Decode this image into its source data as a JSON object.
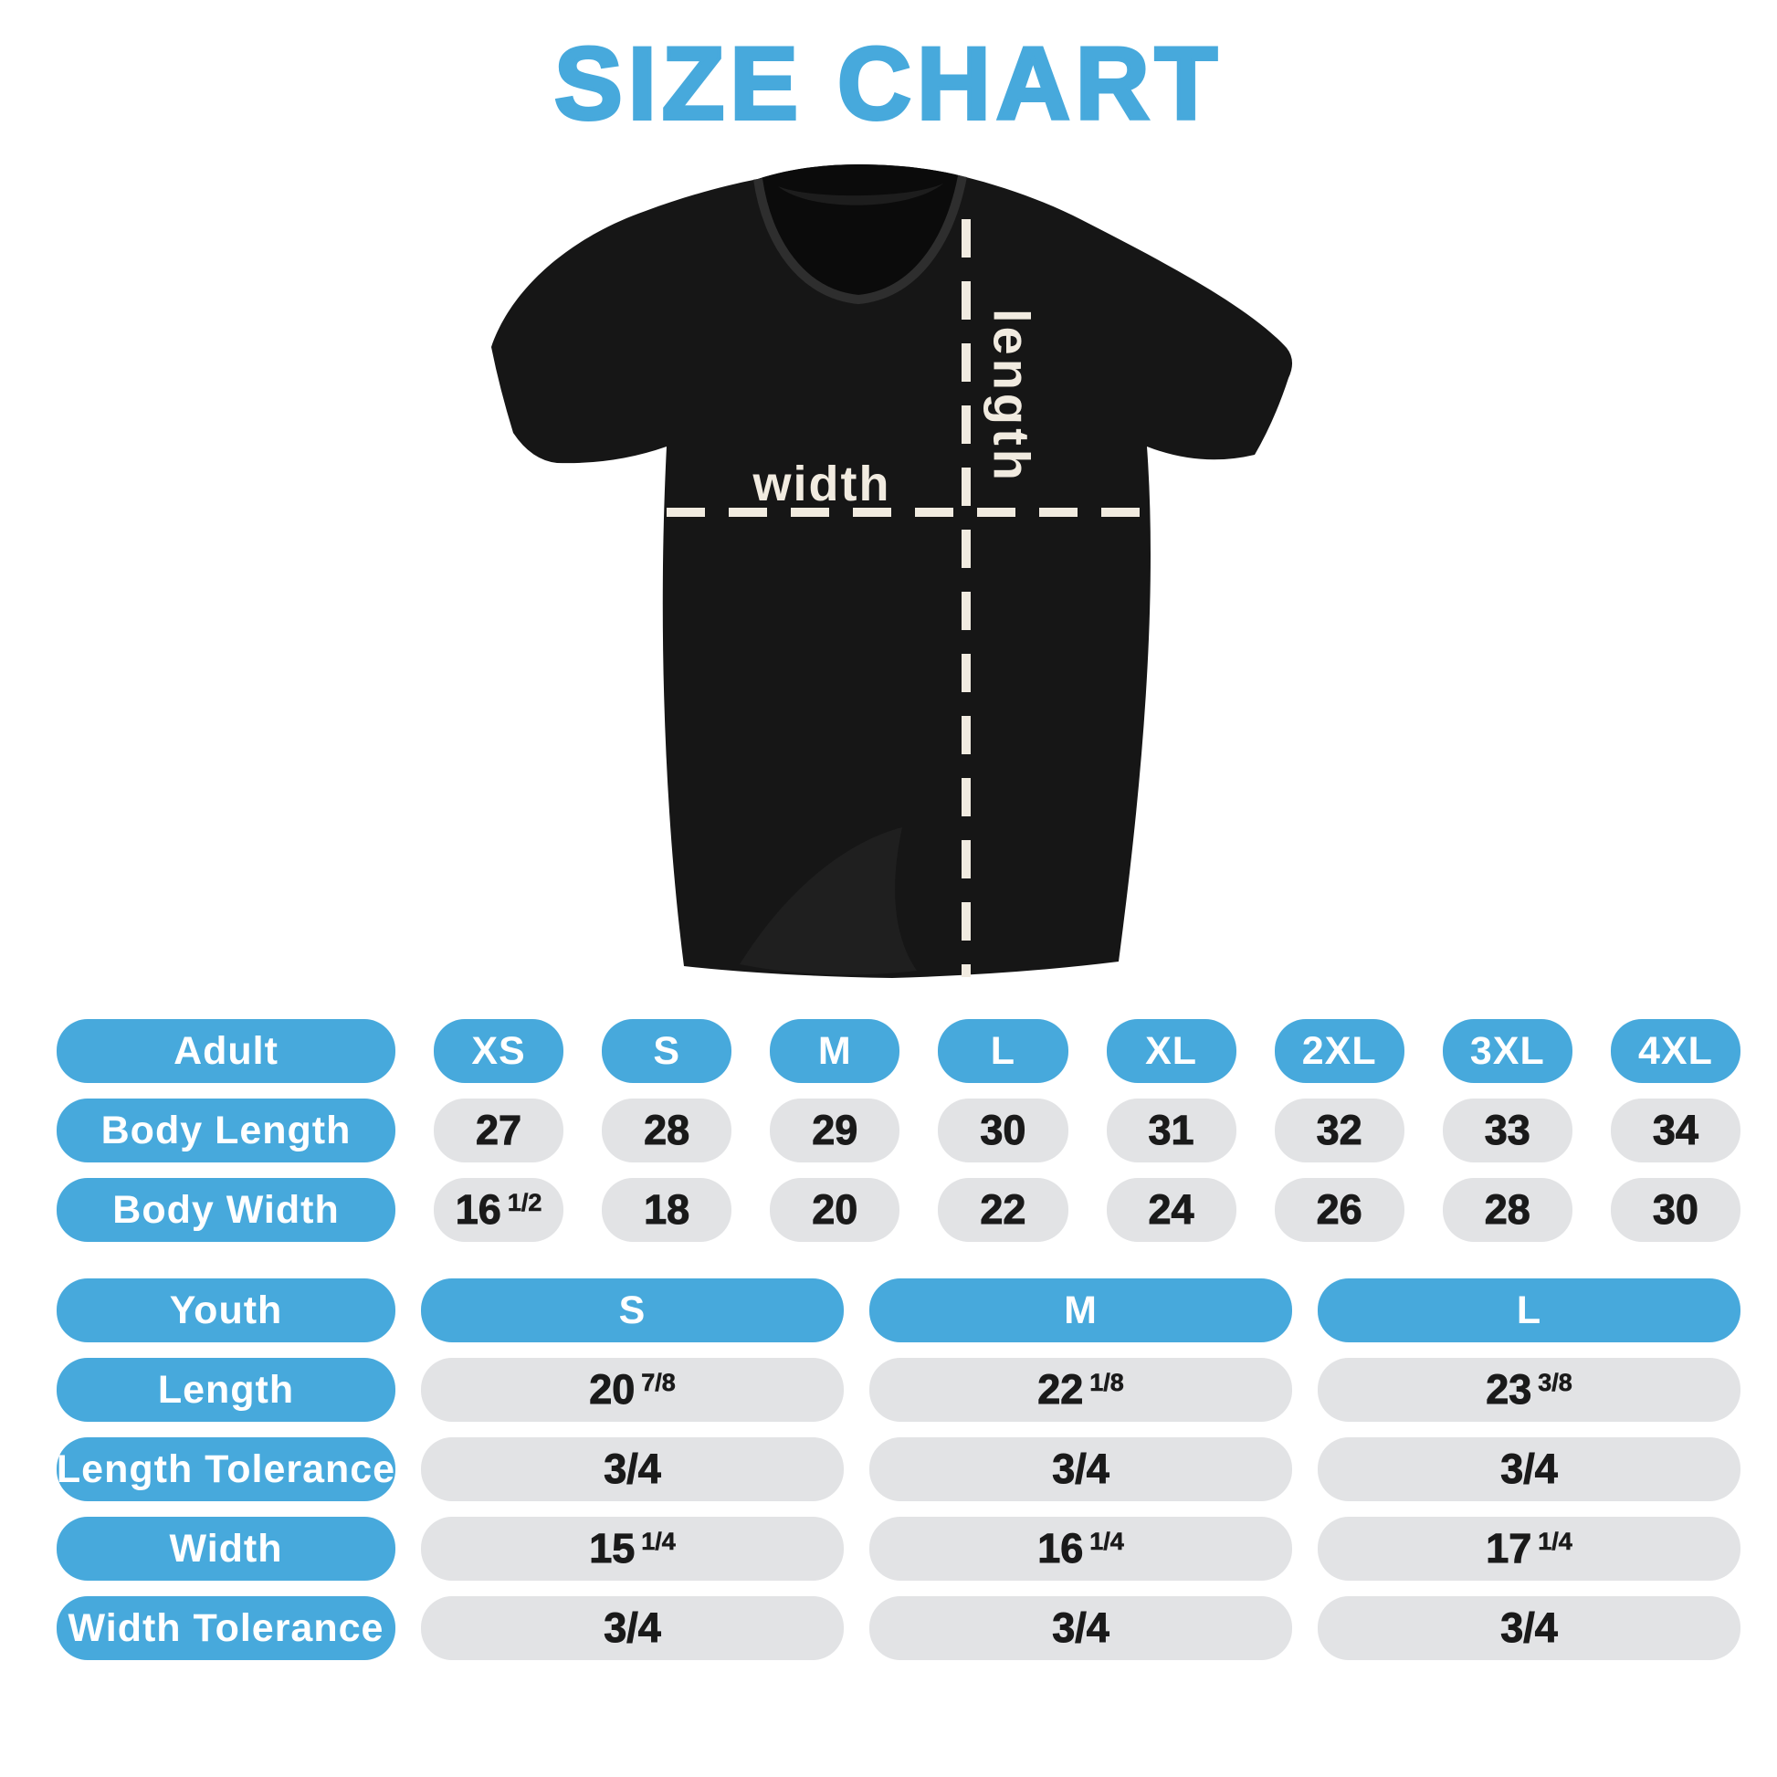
{
  "colors": {
    "background": "#FFFFFF",
    "accent_blue": "#47A9DC",
    "cell_gray": "#E2E3E5",
    "cell_text": "#1A1A1A",
    "header_text": "#FFFFFF",
    "shirt_black": "#161616",
    "marker_cream": "#F1EBE0"
  },
  "title": {
    "text": "SIZE CHART"
  },
  "diagram": {
    "width_label": "width",
    "length_label": "length"
  },
  "adult_table": {
    "header_label": "Adult",
    "sizes": [
      "XS",
      "S",
      "M",
      "L",
      "XL",
      "2XL",
      "3XL",
      "4XL"
    ],
    "rows": [
      {
        "label": "Body Length",
        "values": [
          {
            "v": "27"
          },
          {
            "v": "28"
          },
          {
            "v": "29"
          },
          {
            "v": "30"
          },
          {
            "v": "31"
          },
          {
            "v": "32"
          },
          {
            "v": "33"
          },
          {
            "v": "34"
          }
        ]
      },
      {
        "label": "Body Width",
        "values": [
          {
            "v": "16",
            "f": "1/2"
          },
          {
            "v": "18"
          },
          {
            "v": "20"
          },
          {
            "v": "22"
          },
          {
            "v": "24"
          },
          {
            "v": "26"
          },
          {
            "v": "28"
          },
          {
            "v": "30"
          }
        ]
      }
    ]
  },
  "youth_table": {
    "header_label": "Youth",
    "sizes": [
      "S",
      "M",
      "L"
    ],
    "rows": [
      {
        "label": "Length",
        "values": [
          {
            "v": "20",
            "f": "7/8"
          },
          {
            "v": "22",
            "f": "1/8"
          },
          {
            "v": "23",
            "f": "3/8"
          }
        ]
      },
      {
        "label": "Length Tolerance",
        "values": [
          {
            "v": "3/4"
          },
          {
            "v": "3/4"
          },
          {
            "v": "3/4"
          }
        ]
      },
      {
        "label": "Width",
        "values": [
          {
            "v": "15",
            "f": "1/4"
          },
          {
            "v": "16",
            "f": "1/4"
          },
          {
            "v": "17",
            "f": "1/4"
          }
        ]
      },
      {
        "label": "Width Tolerance",
        "values": [
          {
            "v": "3/4"
          },
          {
            "v": "3/4"
          },
          {
            "v": "3/4"
          }
        ]
      }
    ]
  }
}
